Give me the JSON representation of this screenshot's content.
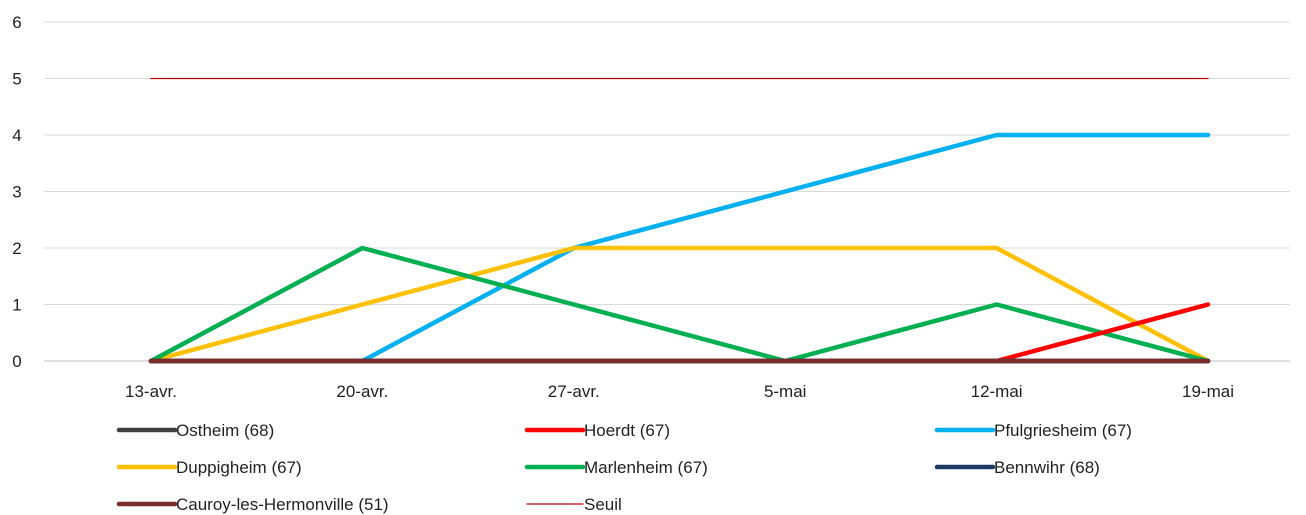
{
  "chart_data": {
    "type": "line",
    "title": "",
    "xlabel": "",
    "ylabel": "",
    "categories": [
      "13-avr.",
      "20-avr.",
      "27-avr.",
      "5-mai",
      "12-mai",
      "19-mai"
    ],
    "ylim": [
      0,
      6
    ],
    "yticks": [
      "0",
      "1",
      "2",
      "3",
      "4",
      "5",
      "6"
    ],
    "grid": "horizontal",
    "legend_position": "bottom",
    "series": [
      {
        "name": "Ostheim (68)",
        "color": "#404040",
        "values": [
          0,
          0,
          0,
          0,
          0,
          0
        ]
      },
      {
        "name": "Hoerdt (67)",
        "color": "#ff0000",
        "values": [
          0,
          0,
          0,
          0,
          0,
          1
        ]
      },
      {
        "name": "Pfulgriesheim (67)",
        "color": "#00b0f0",
        "values": [
          null,
          0,
          2,
          3,
          4,
          4
        ]
      },
      {
        "name": "Duppigheim (67)",
        "color": "#ffc000",
        "values": [
          0,
          1,
          2,
          2,
          2,
          0
        ]
      },
      {
        "name": "Marlenheim (67)",
        "color": "#00b050",
        "values": [
          0,
          2,
          1,
          0,
          1,
          0
        ]
      },
      {
        "name": "Bennwihr (68)",
        "color": "#1f3864",
        "values": [
          0,
          0,
          0,
          0,
          0,
          0
        ]
      },
      {
        "name": "Cauroy-les-Hermonville (51)",
        "color": "#7b2c2c",
        "values": [
          0,
          0,
          0,
          0,
          0,
          0
        ]
      },
      {
        "name": "Seuil",
        "color": "#c00000",
        "values": [
          5,
          5,
          5,
          5,
          5,
          5
        ],
        "thin": true
      }
    ]
  }
}
